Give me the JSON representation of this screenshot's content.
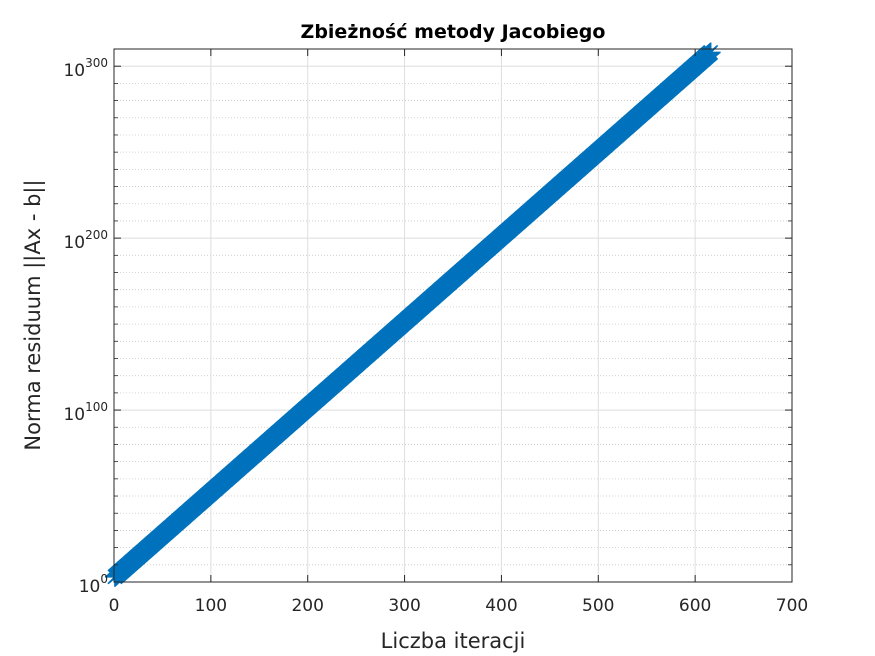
{
  "chart_data": {
    "type": "scatter",
    "title": "Zbieżność metody Jacobiego",
    "xlabel": "Liczba iteracji",
    "ylabel": "Norma residuum ||Ax - b||",
    "xlim": [
      0,
      700
    ],
    "ylim_exponent": [
      0,
      310
    ],
    "yscale": "log",
    "grid": true,
    "minor_grid": true,
    "marker": "asterisk",
    "x_ticks": [
      0,
      100,
      200,
      300,
      400,
      500,
      600,
      700
    ],
    "x_tick_labels": [
      "0",
      "100",
      "200",
      "300",
      "400",
      "500",
      "600",
      "700"
    ],
    "y_tick_exponents": [
      0,
      100,
      200,
      300
    ],
    "y_tick_labels": [
      {
        "base": "10",
        "exp": "0"
      },
      {
        "base": "10",
        "exp": "100"
      },
      {
        "base": "10",
        "exp": "200"
      },
      {
        "base": "10",
        "exp": "300"
      }
    ],
    "series": [
      {
        "color": "#0072bd",
        "x_start": 1,
        "x_end": 616,
        "x_step": 1,
        "log10_y_start": 3,
        "log10_y_end": 308
      }
    ]
  }
}
